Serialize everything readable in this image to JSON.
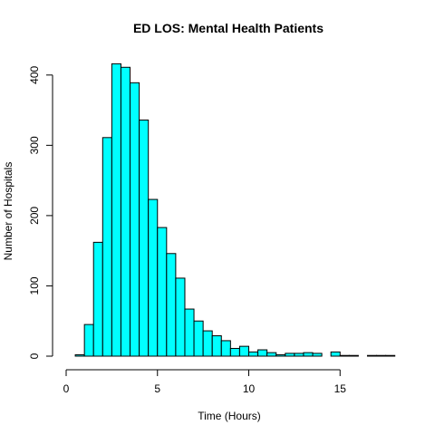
{
  "chart_data": {
    "type": "bar",
    "title": "ED LOS: Mental Health Patients",
    "xlabel": "Time (Hours)",
    "ylabel": "Number of Hospitals",
    "bin_width": 0.5,
    "bin_start": 0.5,
    "xlim": [
      0,
      19
    ],
    "ylim": [
      0,
      420
    ],
    "x_ticks": [
      0,
      5,
      10,
      15
    ],
    "y_ticks": [
      0,
      100,
      200,
      300,
      400
    ],
    "values": [
      2,
      45,
      162,
      311,
      416,
      411,
      389,
      336,
      223,
      183,
      146,
      111,
      67,
      50,
      36,
      29,
      22,
      11,
      14,
      6,
      9,
      5,
      2,
      4,
      4,
      5,
      4,
      0,
      6,
      1,
      1,
      0,
      1,
      1,
      1
    ],
    "bar_color": "#00FFFF",
    "edge_color": "#000000",
    "grid": false
  }
}
